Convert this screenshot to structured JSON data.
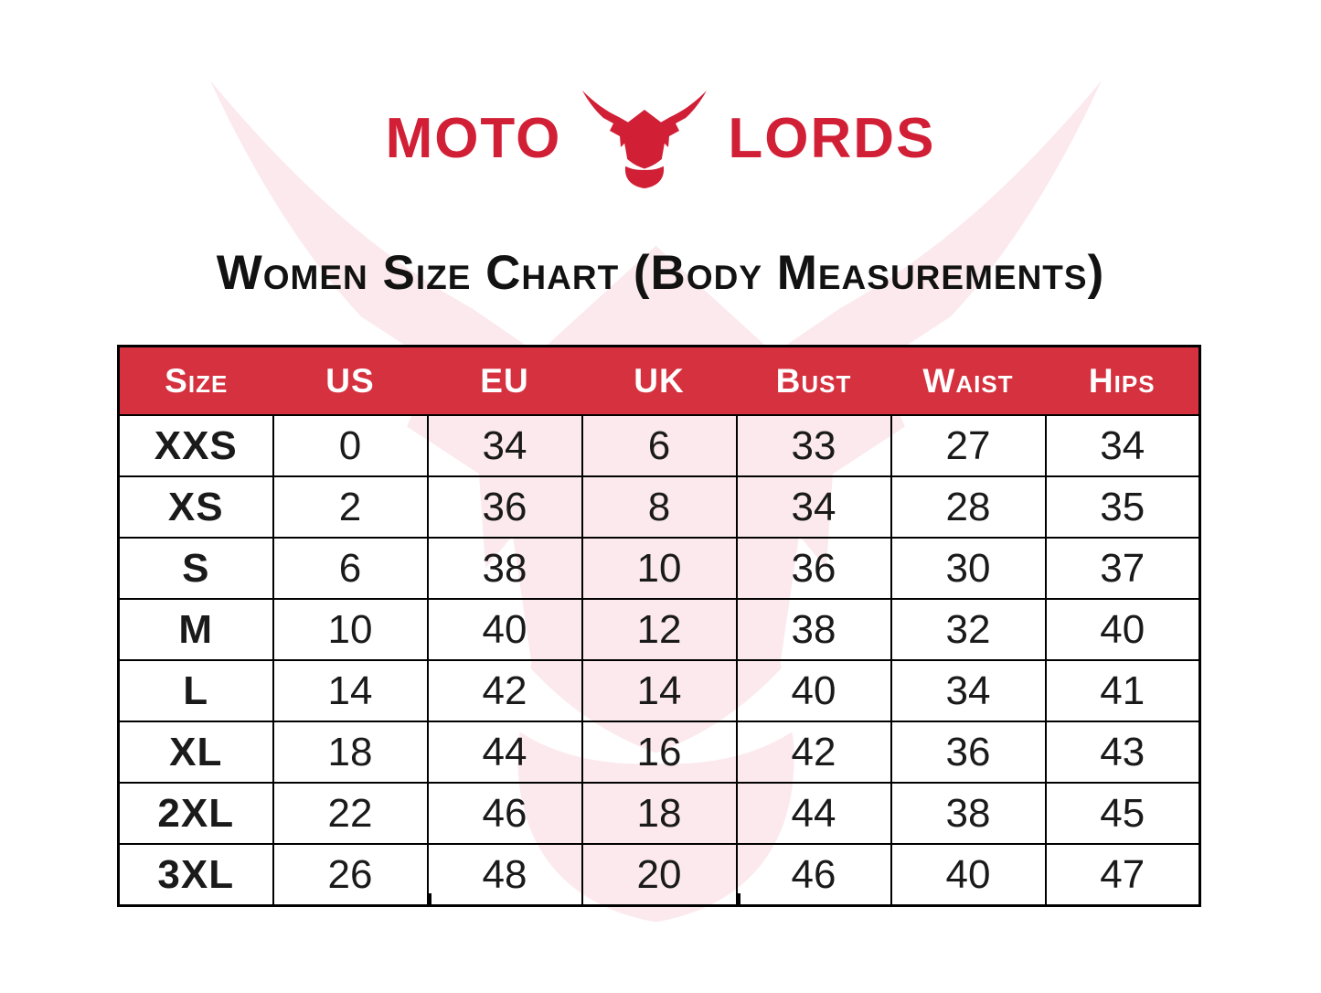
{
  "brand": {
    "name_left": "MOTO",
    "name_right": "LORDS",
    "icon": "bull-helmet-icon",
    "logo_color": "#d11f36"
  },
  "title": "Women Size Chart (Body Measurements)",
  "watermark": {
    "icon": "bull-helmet-watermark",
    "color": "#fbe9ed"
  },
  "table": {
    "header_bg": "#d5313f",
    "header_text_color": "#ffffff",
    "columns": [
      "Size",
      "US",
      "EU",
      "UK",
      "Bust",
      "Waist",
      "Hips"
    ],
    "rows": [
      [
        "XXS",
        "0",
        "34",
        "6",
        "33",
        "27",
        "34"
      ],
      [
        "XS",
        "2",
        "36",
        "8",
        "34",
        "28",
        "35"
      ],
      [
        "S",
        "6",
        "38",
        "10",
        "36",
        "30",
        "37"
      ],
      [
        "M",
        "10",
        "40",
        "12",
        "38",
        "32",
        "40"
      ],
      [
        "L",
        "14",
        "42",
        "14",
        "40",
        "34",
        "41"
      ],
      [
        "XL",
        "18",
        "44",
        "16",
        "42",
        "36",
        "43"
      ],
      [
        "2XL",
        "22",
        "46",
        "18",
        "44",
        "38",
        "45"
      ],
      [
        "3XL",
        "26",
        "48",
        "20",
        "46",
        "40",
        "47"
      ]
    ]
  }
}
